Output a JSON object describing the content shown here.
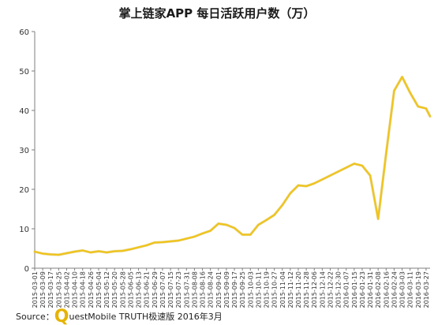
{
  "chart_data": {
    "type": "line",
    "title": "掌上链家APP 每日活跃用户数（万）",
    "xlabel": "",
    "ylabel": "",
    "ylim": [
      0,
      60
    ],
    "yticks": [
      0,
      10,
      20,
      30,
      40,
      50,
      60
    ],
    "grid": false,
    "legend": "none",
    "line_color": "#f0c419",
    "x_tick_labels": [
      "2015-03-01",
      "2015-03-09",
      "2015-03-17",
      "2015-03-25",
      "2015-04-02",
      "2015-04-10",
      "2015-04-18",
      "2015-04-26",
      "2015-05-04",
      "2015-05-12",
      "2015-05-20",
      "2015-05-28",
      "2015-06-05",
      "2015-06-13",
      "2015-06-21",
      "2015-06-29",
      "2015-07-07",
      "2015-07-15",
      "2015-07-23",
      "2015-07-31",
      "2015-08-08",
      "2015-08-16",
      "2015-08-24",
      "2015-09-01",
      "2015-09-09",
      "2015-09-17",
      "2015-09-25",
      "2015-10-03",
      "2015-10-11",
      "2015-10-19",
      "2015-10-27",
      "2015-11-04",
      "2015-11-12",
      "2015-11-20",
      "2015-11-28",
      "2015-12-06",
      "2015-12-14",
      "2015-12-22",
      "2015-12-30",
      "2016-01-07",
      "2016-01-15",
      "2016-01-23",
      "2016-01-31",
      "2016-02-08",
      "2016-02-16",
      "2016-02-24",
      "2016-03-03",
      "2016-03-11",
      "2016-03-19",
      "2016-03-27"
    ],
    "series": [
      {
        "points": [
          [
            "2015-03-01",
            4.2
          ],
          [
            "2015-03-09",
            3.7
          ],
          [
            "2015-03-17",
            3.5
          ],
          [
            "2015-03-25",
            3.4
          ],
          [
            "2015-04-02",
            3.8
          ],
          [
            "2015-04-10",
            4.2
          ],
          [
            "2015-04-18",
            4.5
          ],
          [
            "2015-04-26",
            4.0
          ],
          [
            "2015-05-04",
            4.3
          ],
          [
            "2015-05-12",
            4.0
          ],
          [
            "2015-05-20",
            4.3
          ],
          [
            "2015-05-28",
            4.4
          ],
          [
            "2015-06-05",
            4.8
          ],
          [
            "2015-06-13",
            5.3
          ],
          [
            "2015-06-21",
            5.8
          ],
          [
            "2015-06-29",
            6.5
          ],
          [
            "2015-07-07",
            6.6
          ],
          [
            "2015-07-15",
            6.8
          ],
          [
            "2015-07-23",
            7.0
          ],
          [
            "2015-07-31",
            7.5
          ],
          [
            "2015-08-08",
            8.0
          ],
          [
            "2015-08-16",
            8.8
          ],
          [
            "2015-08-24",
            9.5
          ],
          [
            "2015-09-01",
            11.3
          ],
          [
            "2015-09-09",
            11.0
          ],
          [
            "2015-09-17",
            10.2
          ],
          [
            "2015-09-25",
            8.5
          ],
          [
            "2015-10-03",
            8.5
          ],
          [
            "2015-10-11",
            11.0
          ],
          [
            "2015-10-19",
            12.2
          ],
          [
            "2015-10-27",
            13.5
          ],
          [
            "2015-11-04",
            16.0
          ],
          [
            "2015-11-12",
            19.0
          ],
          [
            "2015-11-20",
            21.0
          ],
          [
            "2015-11-28",
            20.8
          ],
          [
            "2015-12-06",
            21.5
          ],
          [
            "2015-12-14",
            22.5
          ],
          [
            "2015-12-22",
            23.5
          ],
          [
            "2015-12-30",
            24.5
          ],
          [
            "2016-01-07",
            25.5
          ],
          [
            "2016-01-15",
            26.5
          ],
          [
            "2016-01-23",
            26.0
          ],
          [
            "2016-01-31",
            23.5
          ],
          [
            "2016-02-08",
            12.5
          ],
          [
            "2016-02-16",
            29.0
          ],
          [
            "2016-02-24",
            45.0
          ],
          [
            "2016-03-03",
            48.5
          ],
          [
            "2016-03-11",
            44.5
          ],
          [
            "2016-03-19",
            41.0
          ],
          [
            "2016-03-27",
            40.5
          ],
          [
            "2016-03-31",
            38.5
          ]
        ]
      }
    ],
    "source_prefix": "Source：",
    "source_q": "Q",
    "source_rest": "uestMobile TRUTH极速版 2016年3月"
  }
}
